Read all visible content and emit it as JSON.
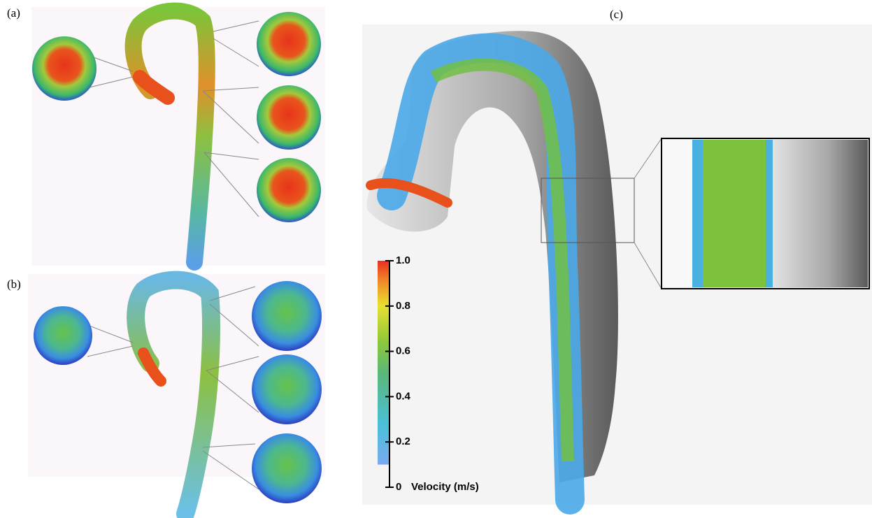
{
  "panels": [
    {
      "label": "(a)"
    },
    {
      "label": "(b)"
    },
    {
      "label": "(c)"
    }
  ],
  "colorbar": {
    "title": "Velocity (m/s)",
    "lim": [
      0,
      1
    ],
    "ticks": [
      0,
      {
        "value": 0.2,
        "label": "0.2"
      },
      {
        "value": 0.4,
        "label": "0.4"
      },
      {
        "value": 0.6,
        "label": "0.6"
      },
      {
        "value": 0.8,
        "label": "0.8"
      },
      {
        "value": 1,
        "label": "1.0"
      }
    ]
  }
}
